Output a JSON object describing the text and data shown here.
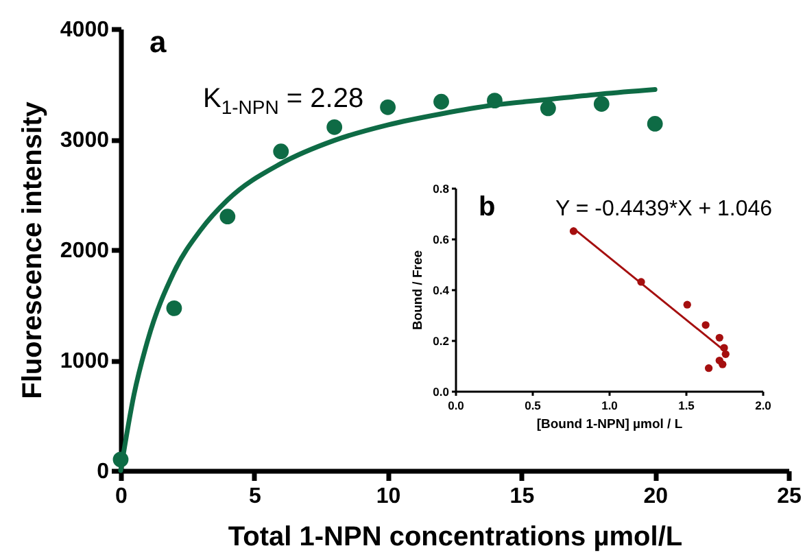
{
  "chart_data": [
    {
      "type": "scatter",
      "xlabel": "Total 1-NPN concentrations µmol/L",
      "ylabel": "Fluorescence intensity",
      "xlim": [
        0,
        25
      ],
      "xticks": [
        0,
        5,
        10,
        15,
        20,
        25
      ],
      "ylim": [
        0,
        4000
      ],
      "yticks": [
        0,
        1000,
        2000,
        3000,
        4000
      ],
      "grid": false,
      "annotations": [
        "a",
        "K$_{1-NPN}$ = 2.28"
      ],
      "series": [
        {
          "color": "#0e6b45",
          "marker": "circle",
          "x": [
            0,
            2,
            4,
            6,
            8,
            10,
            12,
            14,
            16,
            18,
            20
          ],
          "values": [
            100,
            1470,
            2300,
            2890,
            3110,
            3290,
            3340,
            3350,
            3280,
            3320,
            3140
          ]
        },
        {
          "type": "line",
          "color": "#0e6b45",
          "x": [
            0,
            0.5,
            1,
            2,
            3,
            4,
            6,
            8,
            10,
            12,
            14,
            16,
            18,
            20
          ],
          "values": [
            0,
            690,
            1170,
            1800,
            2180,
            2450,
            2780,
            2990,
            3130,
            3230,
            3310,
            3360,
            3410,
            3450
          ]
        }
      ]
    },
    {
      "type": "scatter",
      "xlabel": "[Bound 1-NPN] µmol / L",
      "ylabel": "Bound / Free",
      "xlim": [
        0,
        2
      ],
      "xticks": [
        {
          "value": 0,
          "label": "0.0"
        },
        0.5,
        {
          "value": 1,
          "label": "1.0"
        },
        1.5,
        {
          "value": 2,
          "label": "2.0"
        }
      ],
      "ylim": [
        0,
        0.8
      ],
      "yticks": [
        {
          "value": 0,
          "label": "0.0"
        },
        0.2,
        0.4,
        0.6,
        0.8
      ],
      "grid": false,
      "annotations": [
        "b",
        "Y = -0.4439*X + 1.046"
      ],
      "series": [
        {
          "color": "#a50f0f",
          "marker": "circle",
          "x": [
            0.77,
            1.21,
            1.51,
            1.63,
            1.72,
            1.75,
            1.76,
            1.72,
            1.74,
            1.65
          ],
          "values": [
            0.63,
            0.43,
            0.34,
            0.26,
            0.21,
            0.17,
            0.145,
            0.12,
            0.105,
            0.09
          ]
        },
        {
          "type": "line",
          "color": "#a50f0f",
          "x": [
            0.77,
            1.75
          ],
          "values": [
            0.64,
            0.16
          ]
        }
      ]
    }
  ]
}
